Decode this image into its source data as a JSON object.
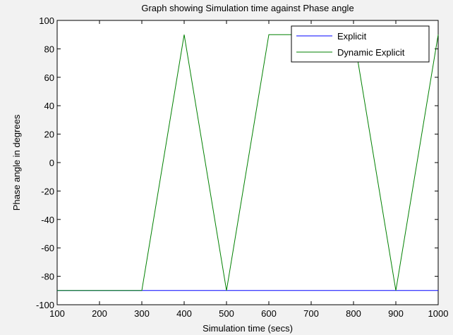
{
  "chart_data": {
    "type": "line",
    "title": "Graph showing Simulation time against Phase angle",
    "xlabel": "Simulation time (secs)",
    "ylabel": "Phase angle in degrees",
    "xlim": [
      100,
      1000
    ],
    "ylim": [
      -100,
      100
    ],
    "xticks": [
      100,
      200,
      300,
      400,
      500,
      600,
      700,
      800,
      900,
      1000
    ],
    "yticks": [
      -100,
      -80,
      -60,
      -40,
      -20,
      0,
      20,
      40,
      60,
      80,
      100
    ],
    "grid": false,
    "legend_position": "top-right",
    "series": [
      {
        "name": "Explicit",
        "color": "#0000ff",
        "x": [
          100,
          1000
        ],
        "y": [
          -90,
          -90
        ]
      },
      {
        "name": "Dynamic Explicit",
        "color": "#008000",
        "x": [
          100,
          300,
          400,
          500,
          600,
          800,
          900,
          1000
        ],
        "y": [
          -90,
          -90,
          90,
          -90,
          90,
          90,
          -90,
          90
        ]
      }
    ]
  }
}
